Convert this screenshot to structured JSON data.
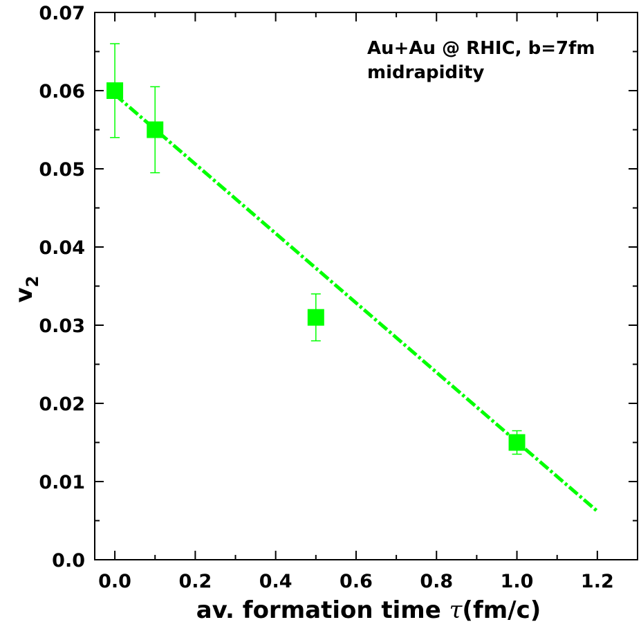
{
  "chart_data": {
    "type": "scatter",
    "xlabel_main": "av. formation time ",
    "xlabel_symbol": "τ",
    "xlabel_unit": "(fm/c)",
    "ylabel_main": "v",
    "ylabel_sub": "2",
    "annotations": [
      "Au+Au @ RHIC, b=7fm",
      "midrapidity"
    ],
    "xlim": [
      -0.05,
      1.3
    ],
    "ylim": [
      0.0,
      0.07
    ],
    "x_ticks": [
      0.0,
      0.2,
      0.4,
      0.6,
      0.8,
      1.0,
      1.2
    ],
    "x_tick_labels": [
      "0.0",
      "0.2",
      "0.4",
      "0.6",
      "0.8",
      "1.0",
      "1.2"
    ],
    "y_ticks": [
      0.0,
      0.01,
      0.02,
      0.03,
      0.04,
      0.05,
      0.06,
      0.07
    ],
    "y_tick_labels": [
      "0.0",
      "0.01",
      "0.02",
      "0.03",
      "0.04",
      "0.05",
      "0.06",
      "0.07"
    ],
    "grid": false,
    "color": "#00ff00",
    "points": [
      {
        "x": 0.0,
        "y": 0.06,
        "err_low": 0.054,
        "err_high": 0.066
      },
      {
        "x": 0.1,
        "y": 0.055,
        "err_low": 0.0495,
        "err_high": 0.0605
      },
      {
        "x": 0.5,
        "y": 0.031,
        "err_low": 0.028,
        "err_high": 0.034
      },
      {
        "x": 1.0,
        "y": 0.015,
        "err_low": 0.0135,
        "err_high": 0.0165
      }
    ],
    "fit_line": {
      "x": [
        0.0,
        1.2
      ],
      "y": [
        0.0595,
        0.0062
      ]
    }
  }
}
